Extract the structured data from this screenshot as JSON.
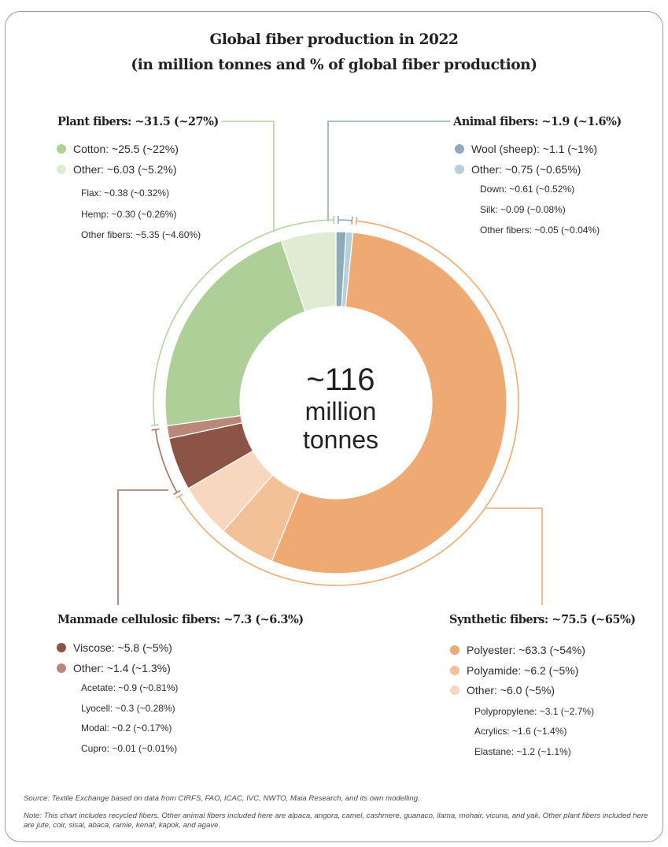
{
  "title": {
    "line1": "Global fiber production in 2022",
    "line2": "(in million tonnes and % of global fiber production)"
  },
  "center": {
    "line1": "~116",
    "line2": "million",
    "line3": "tonnes"
  },
  "groups": {
    "plant": {
      "title": "Plant fibers: ~31.5 (~27%)",
      "items": [
        {
          "label": "Cotton: ~25.5 (~22%)",
          "color": "#afcf98"
        },
        {
          "label": "Other: ~6.03 (~5.2%)",
          "color": "#dfecd3"
        }
      ],
      "sub": [
        "Flax: ~0.38 (~0.32%)",
        "Hemp: ~0.30 (~0.26%)",
        "Other fibers: ~5.35 (~4.60%)"
      ],
      "line_color": "#b6d3a1"
    },
    "animal": {
      "title": "Animal fibers: ~1.9 (~1.6%)",
      "items": [
        {
          "label": "Wool (sheep): ~1.1 (~1%)",
          "color": "#8eaabb"
        },
        {
          "label": "Other: ~0.75 (~0.65%)",
          "color": "#b6cfdb"
        }
      ],
      "sub": [
        "Down: ~0.61 (~0.52%)",
        "Silk: ~0.09 (~0.08%)",
        "Other fibers: ~0.05 (~0.04%)"
      ],
      "line_color": "#8eaabb"
    },
    "cellulosic": {
      "title": "Manmade cellulosic fibers: ~7.3 (~6.3%)",
      "items": [
        {
          "label": "Viscose: ~5.8 (~5%)",
          "color": "#8c5446"
        },
        {
          "label": "Other: ~1.4 (~1.3%)",
          "color": "#b8897b"
        }
      ],
      "sub": [
        "Acetate: ~0.9 (~0.81%)",
        "Lyocell: ~0.3 (~0.28%)",
        "Modal: ~0.2 (~0.17%)",
        "Cupro: ~0.01 (~0.01%)"
      ],
      "line_color": "#a27565"
    },
    "synthetic": {
      "title": "Synthetic fibers: ~75.5 (~65%)",
      "items": [
        {
          "label": "Polyester: ~63.3 (~54%)",
          "color": "#eeaa72"
        },
        {
          "label": "Polyamide: ~6.2 (~5%)",
          "color": "#f3c197"
        },
        {
          "label": "Other: ~6.0 (~5%)",
          "color": "#f7d7bd"
        }
      ],
      "sub": [
        "Polypropylene: ~3.1 (~2.7%)",
        "Acrylics: ~1.6 (~1.4%)",
        "Elastane: ~1.2 (~1.1%)"
      ],
      "line_color": "#eeaa72"
    }
  },
  "footer": {
    "source": "Source: Textile Exchange based on data from CIRFS, FAO, ICAC, IVC, NWTO, Maia Research, and its own modelling.",
    "note": "Note: This chart includes recycled fibers. Other animal fibers included here are alpaca, angora, camel, cashmere, guanaco, llama, mohair, vicuna, and yak. Other plant fibers included here are jute, coir, sisal, abaca, ramie, kenaf, kapok, and agave."
  },
  "chart_data": {
    "type": "pie",
    "unit": "million tonnes",
    "total": 116,
    "slices": [
      {
        "group": "Animal fibers",
        "label": "Wool (sheep)",
        "value": 1.1,
        "percent": 1,
        "color": "#8eaabb"
      },
      {
        "group": "Animal fibers",
        "label": "Other",
        "value": 0.75,
        "percent": 0.65,
        "color": "#b6cfdb"
      },
      {
        "group": "Synthetic fibers",
        "label": "Polyester",
        "value": 63.3,
        "percent": 54,
        "color": "#eeaa72"
      },
      {
        "group": "Synthetic fibers",
        "label": "Polyamide",
        "value": 6.2,
        "percent": 5,
        "color": "#f3c197"
      },
      {
        "group": "Synthetic fibers",
        "label": "Other",
        "value": 6.0,
        "percent": 5,
        "color": "#f7d7bd"
      },
      {
        "group": "Manmade cellulosic fibers",
        "label": "Viscose",
        "value": 5.8,
        "percent": 5,
        "color": "#8c5446"
      },
      {
        "group": "Manmade cellulosic fibers",
        "label": "Other",
        "value": 1.4,
        "percent": 1.3,
        "color": "#b8897b"
      },
      {
        "group": "Plant fibers",
        "label": "Cotton",
        "value": 25.5,
        "percent": 22,
        "color": "#afcf98"
      },
      {
        "group": "Plant fibers",
        "label": "Other",
        "value": 6.03,
        "percent": 5.2,
        "color": "#dfecd3"
      }
    ],
    "groups": [
      {
        "name": "Animal fibers",
        "value": 1.9,
        "percent": 1.6
      },
      {
        "name": "Synthetic fibers",
        "value": 75.5,
        "percent": 65
      },
      {
        "name": "Manmade cellulosic fibers",
        "value": 7.3,
        "percent": 6.3
      },
      {
        "name": "Plant fibers",
        "value": 31.5,
        "percent": 27
      }
    ]
  }
}
